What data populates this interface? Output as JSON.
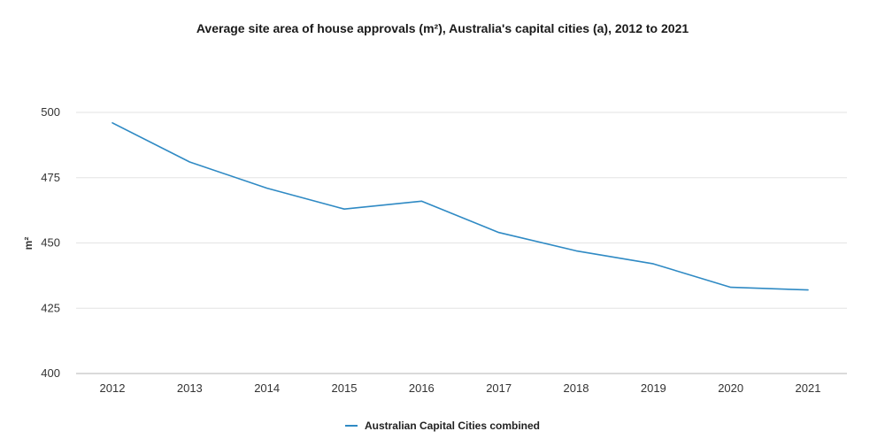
{
  "chart_data": {
    "type": "line",
    "title": "Average site area of house approvals (m²), Australia's capital cities (a), 2012 to 2021",
    "xlabel": "",
    "ylabel": "m²",
    "categories": [
      "2012",
      "2013",
      "2014",
      "2015",
      "2016",
      "2017",
      "2018",
      "2019",
      "2020",
      "2021"
    ],
    "series": [
      {
        "name": "Australian Capital Cities combined",
        "color": "#2f8ac4",
        "values": [
          496,
          481,
          471,
          463,
          466,
          454,
          447,
          442,
          433,
          432
        ]
      }
    ],
    "ylim": [
      400,
      500
    ],
    "yticks": [
      400,
      425,
      450,
      475,
      500
    ],
    "grid": true,
    "legend_position": "bottom"
  }
}
